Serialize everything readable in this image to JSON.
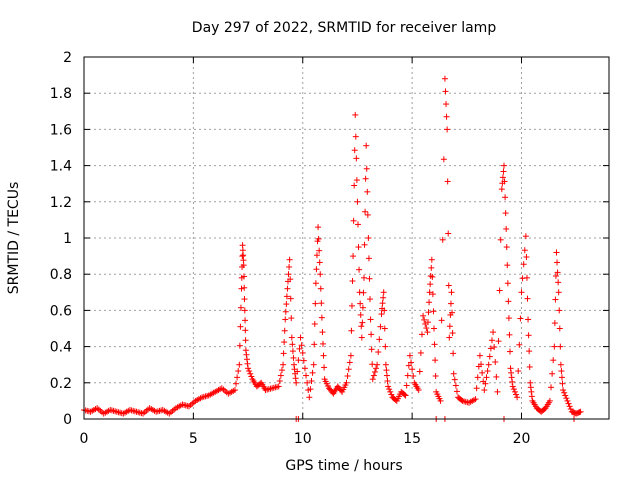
{
  "chart_data": {
    "type": "scatter",
    "title": "Day 297 of 2022, SRMTID for receiver lamp",
    "xlabel": "GPS time / hours",
    "ylabel": "SRMTID / TECUs",
    "xlim": [
      0,
      24
    ],
    "ylim": [
      0,
      2
    ],
    "x_ticks": [
      0,
      5,
      10,
      15,
      20
    ],
    "x_tick_labels": [
      "0",
      "5",
      "10",
      "15",
      "20"
    ],
    "y_ticks": [
      0,
      0.2,
      0.4,
      0.6,
      0.8,
      1,
      1.2,
      1.4,
      1.6,
      1.8,
      2
    ],
    "y_tick_labels": [
      "0",
      "0.2",
      "0.4",
      "0.6",
      "0.8",
      "1",
      "1.2",
      "1.4",
      "1.6",
      "1.8",
      "2"
    ],
    "grid": true,
    "marker": "+",
    "color": "#ff0000",
    "series": [
      {
        "name": "SRMTID",
        "x": [
          0.0,
          0.3,
          0.6,
          0.9,
          1.2,
          1.5,
          1.8,
          2.1,
          2.4,
          2.7,
          3.0,
          3.3,
          3.6,
          3.9,
          4.2,
          4.5,
          4.8,
          5.1,
          5.4,
          5.7,
          6.0,
          6.3,
          6.6,
          6.9,
          7.1,
          7.2,
          7.25,
          7.3,
          7.35,
          7.4,
          7.5,
          7.7,
          7.9,
          8.1,
          8.3,
          8.6,
          8.9,
          9.1,
          9.2,
          9.3,
          9.4,
          9.5,
          9.6,
          9.7,
          9.9,
          10.1,
          10.3,
          10.5,
          10.6,
          10.7,
          10.8,
          10.9,
          11.0,
          11.2,
          11.4,
          11.6,
          11.8,
          12.0,
          12.2,
          12.3,
          12.4,
          12.5,
          12.6,
          12.7,
          12.8,
          12.9,
          13.0,
          13.1,
          13.2,
          13.4,
          13.6,
          13.7,
          13.8,
          13.9,
          14.1,
          14.3,
          14.5,
          14.7,
          14.9,
          15.1,
          15.3,
          15.5,
          15.7,
          15.8,
          15.9,
          16.0,
          16.1,
          16.3,
          16.5,
          16.6,
          16.7,
          16.8,
          16.9,
          17.1,
          17.3,
          17.6,
          17.9,
          18.1,
          18.3,
          18.5,
          18.7,
          18.9,
          19.1,
          19.2,
          19.3,
          19.4,
          19.5,
          19.6,
          19.8,
          20.0,
          20.2,
          20.3,
          20.4,
          20.5,
          20.7,
          20.9,
          21.1,
          21.3,
          21.5,
          21.6,
          21.7,
          21.8,
          21.9,
          22.1,
          22.3,
          22.5,
          22.7
        ],
        "y": [
          0.05,
          0.04,
          0.06,
          0.03,
          0.05,
          0.04,
          0.03,
          0.05,
          0.04,
          0.03,
          0.06,
          0.04,
          0.05,
          0.03,
          0.06,
          0.08,
          0.07,
          0.1,
          0.12,
          0.13,
          0.15,
          0.17,
          0.14,
          0.16,
          0.3,
          0.72,
          0.96,
          0.85,
          0.6,
          0.38,
          0.28,
          0.22,
          0.18,
          0.2,
          0.16,
          0.17,
          0.18,
          0.3,
          0.55,
          0.72,
          0.88,
          0.45,
          0.3,
          0.2,
          0.45,
          0.28,
          0.12,
          0.3,
          0.75,
          1.06,
          0.8,
          0.48,
          0.22,
          0.17,
          0.14,
          0.18,
          0.15,
          0.2,
          0.35,
          0.9,
          1.68,
          1.2,
          0.7,
          0.45,
          0.78,
          1.51,
          1.0,
          0.55,
          0.22,
          0.3,
          0.58,
          0.7,
          0.3,
          0.18,
          0.12,
          0.1,
          0.15,
          0.13,
          0.35,
          0.2,
          0.16,
          0.57,
          0.48,
          0.7,
          0.88,
          0.5,
          0.15,
          0.1,
          1.88,
          1.6,
          0.45,
          0.7,
          0.25,
          0.12,
          0.1,
          0.09,
          0.11,
          0.35,
          0.16,
          0.3,
          0.48,
          0.15,
          1.27,
          1.4,
          1.05,
          0.65,
          0.28,
          0.18,
          0.12,
          0.7,
          1.01,
          0.55,
          0.2,
          0.1,
          0.06,
          0.04,
          0.06,
          0.1,
          0.4,
          0.92,
          0.7,
          0.3,
          0.16,
          0.1,
          0.04,
          0.03,
          0.04
        ],
        "zero_x": [
          9.7,
          9.8,
          16.1,
          16.5,
          19.2,
          22.4
        ]
      }
    ]
  }
}
